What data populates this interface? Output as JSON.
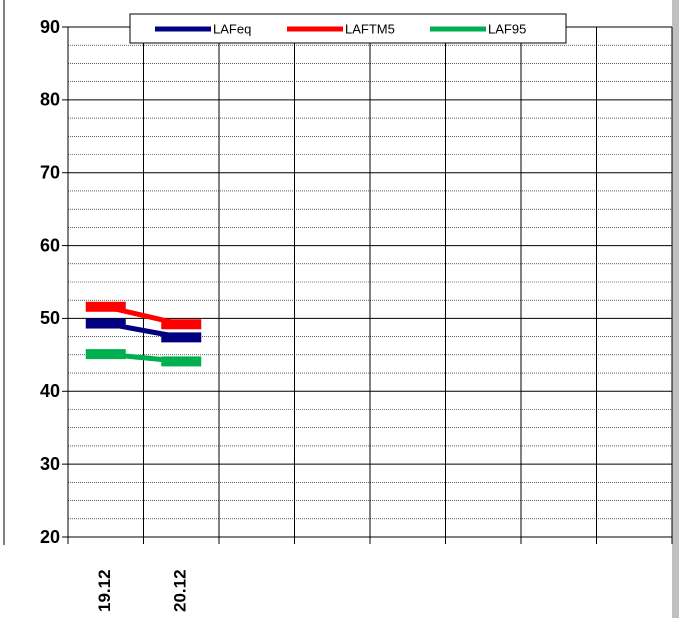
{
  "chart_data": {
    "type": "line",
    "categories": [
      "19.12",
      "20.12",
      null,
      null,
      null,
      null,
      null,
      null
    ],
    "series": [
      {
        "name": "LAFeq",
        "color": "#000080",
        "values": [
          49.3,
          47.4,
          null,
          null,
          null,
          null,
          null,
          null
        ]
      },
      {
        "name": "LAFTM5",
        "color": "#ff0000",
        "values": [
          51.6,
          49.2,
          null,
          null,
          null,
          null,
          null,
          null
        ]
      },
      {
        "name": "LAF95",
        "color": "#00b050",
        "values": [
          45.1,
          44.1,
          null,
          null,
          null,
          null,
          null,
          null
        ]
      }
    ],
    "ylim": [
      20,
      90
    ],
    "yticks": [
      20,
      30,
      40,
      50,
      60,
      70,
      80,
      90
    ],
    "minor_yticks": [
      22.5,
      25,
      27.5,
      32.5,
      35,
      37.5,
      42.5,
      45,
      47.5,
      52.5,
      55,
      57.5,
      62.5,
      65,
      67.5,
      72.5,
      75,
      77.5,
      82.5,
      85,
      87.5
    ],
    "grid": true,
    "legend": "top"
  }
}
